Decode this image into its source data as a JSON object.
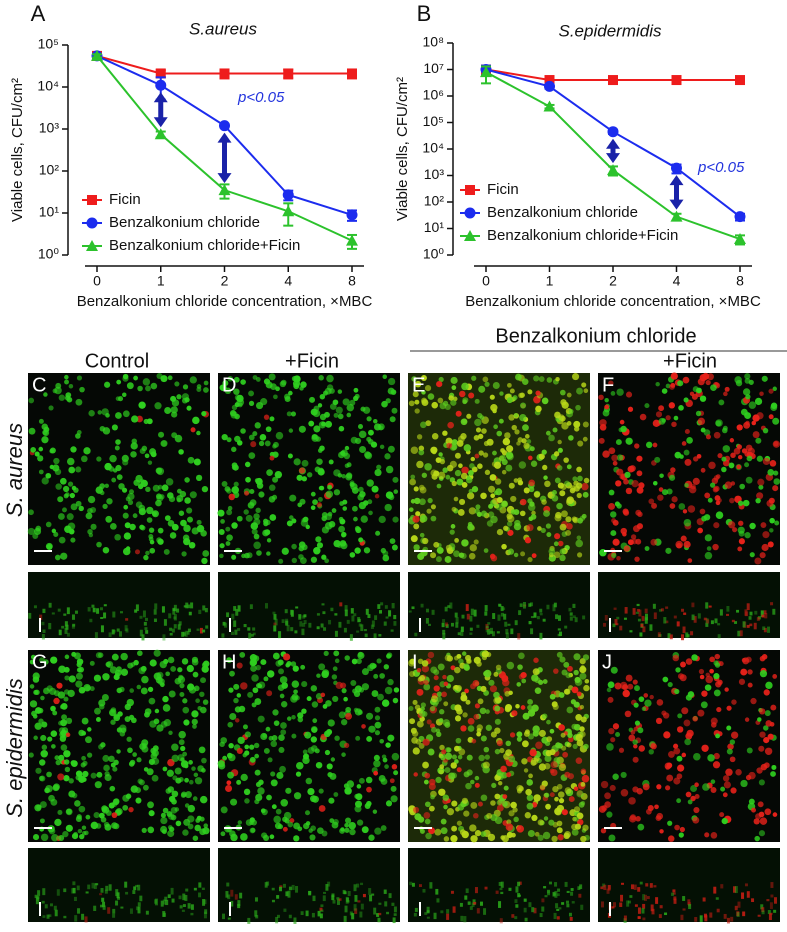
{
  "chart_data": [
    {
      "type": "line",
      "panel": "A",
      "title": "S.aureus",
      "x_label": "Benzalkonium chloride concentration, ×MBC",
      "y_label": "Viable cells, CFU/cm²",
      "categories": [
        "0",
        "1",
        "2",
        "4",
        "8"
      ],
      "log_scale": true,
      "ylim": [
        1,
        100000
      ],
      "yticks": [
        {
          "value": 1,
          "label": "10⁰"
        },
        {
          "value": 10,
          "label": "10¹"
        },
        {
          "value": 100,
          "label": "10²"
        },
        {
          "value": 1000,
          "label": "10³"
        },
        {
          "value": 10000,
          "label": "10⁴"
        },
        {
          "value": 100000,
          "label": "10⁵"
        }
      ],
      "annotation": "p<0.05",
      "legend": "lower left",
      "series": [
        {
          "name": "Ficin",
          "color": "#ee1c1c",
          "marker": "square",
          "values": [
            55000,
            21000,
            21000,
            21000,
            21000
          ],
          "errors": [
            5000,
            4000,
            5000,
            5000,
            5000
          ]
        },
        {
          "name": "Benzalkonium chloride",
          "color": "#1c2cee",
          "marker": "circle",
          "values": [
            55000,
            11000,
            1200,
            27,
            9
          ],
          "errors": [
            5000,
            6000,
            100,
            7,
            2.5
          ]
        },
        {
          "name": "Benzalkonium chloride+Ficin",
          "color": "#2cc22c",
          "marker": "triangle",
          "values": [
            55000,
            750,
            35,
            11,
            2.2
          ],
          "errors": [
            5000,
            120,
            13,
            6,
            0.8
          ]
        }
      ]
    },
    {
      "type": "line",
      "panel": "B",
      "title": "S.epidermidis",
      "x_label": "Benzalkonium chloride concentration, ×MBC",
      "y_label": "Viable cells, CFU/cm²",
      "categories": [
        "0",
        "1",
        "2",
        "4",
        "8"
      ],
      "log_scale": true,
      "ylim": [
        1,
        100000000
      ],
      "yticks": [
        {
          "value": 1,
          "label": "10⁰"
        },
        {
          "value": 10,
          "label": "10¹"
        },
        {
          "value": 100,
          "label": "10²"
        },
        {
          "value": 1000,
          "label": "10³"
        },
        {
          "value": 10000,
          "label": "10⁴"
        },
        {
          "value": 100000,
          "label": "10⁵"
        },
        {
          "value": 1000000,
          "label": "10⁶"
        },
        {
          "value": 10000000,
          "label": "10⁷"
        },
        {
          "value": 100000000,
          "label": "10⁸"
        }
      ],
      "annotation": "p<0.05",
      "legend": "lower left",
      "series": [
        {
          "name": "Ficin",
          "color": "#ee1c1c",
          "marker": "square",
          "values": [
            10000000,
            4000000,
            4000000,
            4000000,
            4000000
          ],
          "errors": [
            3000000,
            500000,
            500000,
            500000,
            500000
          ]
        },
        {
          "name": "Benzalkonium chloride",
          "color": "#1c2cee",
          "marker": "circle",
          "values": [
            10000000,
            2300000,
            45000,
            1900,
            28
          ],
          "errors": [
            4000000,
            400000,
            8000,
            700,
            8
          ]
        },
        {
          "name": "Benzalkonium chloride+Ficin",
          "color": "#2cc22c",
          "marker": "triangle",
          "values": [
            8000000,
            400000,
            1600,
            28,
            4
          ],
          "errors": [
            5000000,
            60000,
            600,
            8,
            1.5
          ]
        }
      ]
    }
  ],
  "figure": {
    "column_headers": [
      "Control",
      "+Ficin",
      "+Ficin"
    ],
    "group_header": "Benzalkonium chloride",
    "row_labels": [
      "S. aureus",
      "S. epidermidis"
    ],
    "panel_letters": [
      "C",
      "D",
      "E",
      "F",
      "G",
      "H",
      "I",
      "J"
    ]
  }
}
